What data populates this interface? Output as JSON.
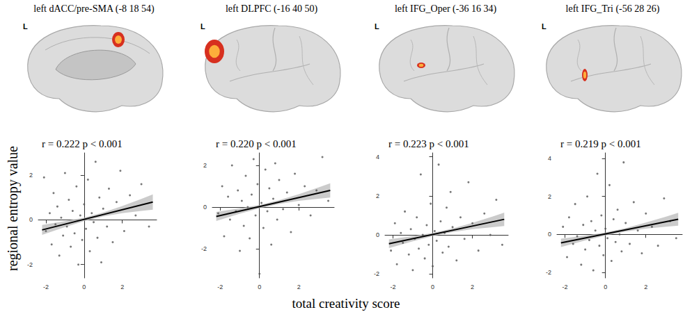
{
  "xlabel": "total creativity score",
  "ylabel": "regional entropy value",
  "chart_data": [
    {
      "type": "scatter",
      "title": "left dACC/pre-SMA (-8 18 54)",
      "hemisphere_label": "L",
      "annotation": "r = 0.222 p < 0.001",
      "color": "#555555",
      "xlim": [
        -2.4,
        3.8
      ],
      "xticks": [
        -2,
        0,
        2
      ],
      "ylim": [
        -2.6,
        3
      ],
      "yticks": [
        -2,
        0,
        2
      ],
      "points": [
        [
          -2.1,
          1.9
        ],
        [
          -2.0,
          -0.5
        ],
        [
          -1.8,
          0.3
        ],
        [
          -1.7,
          -1.1
        ],
        [
          -1.6,
          1.2
        ],
        [
          -1.5,
          -0.2
        ],
        [
          -1.4,
          0.6
        ],
        [
          -1.3,
          -1.6
        ],
        [
          -1.2,
          0.1
        ],
        [
          -1.1,
          -0.7
        ],
        [
          -1.0,
          2.1
        ],
        [
          -0.9,
          -0.3
        ],
        [
          -0.8,
          0.9
        ],
        [
          -0.7,
          -1.2
        ],
        [
          -0.6,
          0.4
        ],
        [
          -0.5,
          -0.6
        ],
        [
          -0.4,
          1.5
        ],
        [
          -0.3,
          -2.0
        ],
        [
          -0.2,
          0.2
        ],
        [
          -0.1,
          -0.9
        ],
        [
          0.0,
          0.7
        ],
        [
          0.1,
          -0.4
        ],
        [
          0.2,
          1.8
        ],
        [
          0.3,
          -1.4
        ],
        [
          0.4,
          0.3
        ],
        [
          0.5,
          -0.1
        ],
        [
          0.6,
          2.6
        ],
        [
          0.7,
          -0.8
        ],
        [
          0.8,
          1.0
        ],
        [
          0.9,
          -1.9
        ],
        [
          1.0,
          0.5
        ],
        [
          1.2,
          -0.3
        ],
        [
          1.3,
          1.4
        ],
        [
          1.5,
          -1.0
        ],
        [
          1.7,
          0.8
        ],
        [
          1.9,
          2.2
        ],
        [
          2.1,
          -0.5
        ],
        [
          2.4,
          1.1
        ],
        [
          2.7,
          0.2
        ],
        [
          3.0,
          1.6
        ],
        [
          3.4,
          -0.3
        ]
      ],
      "fit": {
        "x": [
          -2.2,
          3.6
        ],
        "y": [
          -0.45,
          0.8
        ]
      },
      "band": {
        "x": [
          -2.2,
          -1,
          0,
          1,
          2,
          3,
          3.6
        ],
        "lower": [
          -0.67,
          -0.32,
          -0.06,
          0.15,
          0.3,
          0.4,
          0.46
        ],
        "upper": [
          -0.23,
          -0.06,
          0.1,
          0.33,
          0.62,
          0.94,
          1.14
        ]
      }
    },
    {
      "type": "scatter",
      "title": "left DLPFC (-16 40 50)",
      "hemisphere_label": "L",
      "annotation": "r = 0.220 p < 0.001",
      "color": "#555555",
      "xlim": [
        -2.4,
        3.8
      ],
      "xticks": [
        -2,
        0,
        2
      ],
      "ylim": [
        -3.4,
        2.6
      ],
      "yticks": [
        -2,
        0,
        2
      ],
      "points": [
        [
          -2.1,
          -0.3
        ],
        [
          -1.9,
          1.0
        ],
        [
          -1.8,
          -1.4
        ],
        [
          -1.6,
          0.5
        ],
        [
          -1.5,
          -0.6
        ],
        [
          -1.4,
          2.0
        ],
        [
          -1.2,
          -0.2
        ],
        [
          -1.1,
          0.8
        ],
        [
          -1.0,
          -2.1
        ],
        [
          -0.9,
          0.3
        ],
        [
          -0.8,
          -0.9
        ],
        [
          -0.7,
          1.5
        ],
        [
          -0.6,
          0.0
        ],
        [
          -0.5,
          -1.5
        ],
        [
          -0.4,
          0.6
        ],
        [
          -0.3,
          2.3
        ],
        [
          -0.2,
          -0.4
        ],
        [
          -0.1,
          1.1
        ],
        [
          0.0,
          -3.2
        ],
        [
          0.1,
          0.2
        ],
        [
          0.2,
          -1.0
        ],
        [
          0.3,
          1.8
        ],
        [
          0.4,
          -0.2
        ],
        [
          0.5,
          0.9
        ],
        [
          0.6,
          -1.8
        ],
        [
          0.7,
          0.4
        ],
        [
          0.8,
          2.1
        ],
        [
          0.9,
          -0.6
        ],
        [
          1.0,
          1.3
        ],
        [
          1.2,
          -0.1
        ],
        [
          1.4,
          0.7
        ],
        [
          1.6,
          -1.2
        ],
        [
          1.8,
          1.6
        ],
        [
          2.0,
          0.1
        ],
        [
          2.3,
          1.0
        ],
        [
          2.6,
          -0.4
        ],
        [
          2.9,
          0.8
        ],
        [
          3.2,
          2.4
        ],
        [
          3.5,
          0.3
        ]
      ],
      "fit": {
        "x": [
          -2.2,
          3.6
        ],
        "y": [
          -0.45,
          0.8
        ]
      },
      "band": {
        "x": [
          -2.2,
          -1,
          0,
          1,
          2,
          3,
          3.6
        ],
        "lower": [
          -0.67,
          -0.32,
          -0.06,
          0.15,
          0.3,
          0.4,
          0.46
        ],
        "upper": [
          -0.23,
          -0.06,
          0.1,
          0.33,
          0.62,
          0.94,
          1.14
        ]
      }
    },
    {
      "type": "scatter",
      "title": "left IFG_Oper (-36 16 34)",
      "hemisphere_label": "L",
      "annotation": "r = 0.223 p < 0.001",
      "color": "#555555",
      "xlim": [
        -2.4,
        3.8
      ],
      "xticks": [
        -2,
        0,
        2
      ],
      "ylim": [
        -2.2,
        4.2
      ],
      "yticks": [
        -2,
        0,
        2,
        4
      ],
      "points": [
        [
          -2.1,
          -0.8
        ],
        [
          -1.9,
          0.6
        ],
        [
          -1.8,
          -1.5
        ],
        [
          -1.6,
          0.1
        ],
        [
          -1.5,
          -0.4
        ],
        [
          -1.4,
          1.2
        ],
        [
          -1.2,
          -1.0
        ],
        [
          -1.1,
          0.3
        ],
        [
          -1.0,
          -1.8
        ],
        [
          -0.9,
          -0.2
        ],
        [
          -0.8,
          0.9
        ],
        [
          -0.7,
          -0.7
        ],
        [
          -0.6,
          3.1
        ],
        [
          -0.5,
          0.0
        ],
        [
          -0.4,
          -1.2
        ],
        [
          -0.3,
          0.5
        ],
        [
          -0.2,
          -0.5
        ],
        [
          -0.1,
          1.6
        ],
        [
          0.0,
          -1.6
        ],
        [
          0.1,
          0.2
        ],
        [
          0.2,
          -0.3
        ],
        [
          0.3,
          3.6
        ],
        [
          0.4,
          0.7
        ],
        [
          0.5,
          -0.9
        ],
        [
          0.6,
          0.1
        ],
        [
          0.7,
          1.4
        ],
        [
          0.8,
          -0.6
        ],
        [
          0.9,
          2.2
        ],
        [
          1.0,
          0.4
        ],
        [
          1.2,
          -1.3
        ],
        [
          1.4,
          0.9
        ],
        [
          1.6,
          -0.2
        ],
        [
          1.8,
          2.7
        ],
        [
          2.0,
          0.6
        ],
        [
          2.3,
          -0.8
        ],
        [
          2.6,
          1.1
        ],
        [
          2.9,
          0.0
        ],
        [
          3.2,
          1.8
        ],
        [
          3.5,
          -0.5
        ]
      ],
      "fit": {
        "x": [
          -2.2,
          3.6
        ],
        "y": [
          -0.45,
          0.8
        ]
      },
      "band": {
        "x": [
          -2.2,
          -1,
          0,
          1,
          2,
          3,
          3.6
        ],
        "lower": [
          -0.67,
          -0.32,
          -0.06,
          0.15,
          0.3,
          0.4,
          0.46
        ],
        "upper": [
          -0.23,
          -0.06,
          0.1,
          0.33,
          0.62,
          0.94,
          1.14
        ]
      }
    },
    {
      "type": "scatter",
      "title": "left IFG_Tri (-56 28 26)",
      "hemisphere_label": "L",
      "annotation": "r = 0.219 p < 0.001",
      "color": "#555555",
      "xlim": [
        -2.4,
        3.8
      ],
      "xticks": [
        -2,
        0,
        2
      ],
      "ylim": [
        -2.3,
        4.3
      ],
      "yticks": [
        -2,
        0,
        2,
        4
      ],
      "points": [
        [
          -2.1,
          0.4
        ],
        [
          -1.9,
          -1.2
        ],
        [
          -1.8,
          0.9
        ],
        [
          -1.6,
          -0.5
        ],
        [
          -1.5,
          1.6
        ],
        [
          -1.4,
          -0.1
        ],
        [
          -1.2,
          -1.6
        ],
        [
          -1.1,
          0.5
        ],
        [
          -1.0,
          -0.8
        ],
        [
          -0.9,
          2.0
        ],
        [
          -0.8,
          -0.3
        ],
        [
          -0.7,
          0.7
        ],
        [
          -0.6,
          -1.9
        ],
        [
          -0.5,
          0.2
        ],
        [
          -0.4,
          3.2
        ],
        [
          -0.3,
          -0.6
        ],
        [
          -0.2,
          1.0
        ],
        [
          -0.1,
          -1.1
        ],
        [
          0.0,
          0.3
        ],
        [
          0.1,
          -0.2
        ],
        [
          0.2,
          2.6
        ],
        [
          0.3,
          -1.4
        ],
        [
          0.4,
          0.8
        ],
        [
          0.5,
          -0.4
        ],
        [
          0.6,
          1.3
        ],
        [
          0.7,
          0.0
        ],
        [
          0.8,
          -0.9
        ],
        [
          0.9,
          3.8
        ],
        [
          1.0,
          0.6
        ],
        [
          1.2,
          -0.5
        ],
        [
          1.4,
          1.7
        ],
        [
          1.6,
          0.2
        ],
        [
          1.8,
          -1.0
        ],
        [
          2.0,
          1.1
        ],
        [
          2.3,
          0.4
        ],
        [
          2.6,
          -0.6
        ],
        [
          2.9,
          1.9
        ],
        [
          3.2,
          0.7
        ],
        [
          3.5,
          -0.2
        ]
      ],
      "fit": {
        "x": [
          -2.2,
          3.6
        ],
        "y": [
          -0.45,
          0.8
        ]
      },
      "band": {
        "x": [
          -2.2,
          -1,
          0,
          1,
          2,
          3,
          3.6
        ],
        "lower": [
          -0.67,
          -0.32,
          -0.06,
          0.15,
          0.3,
          0.4,
          0.46
        ],
        "upper": [
          -0.23,
          -0.06,
          0.1,
          0.33,
          0.62,
          0.94,
          1.14
        ]
      }
    }
  ]
}
